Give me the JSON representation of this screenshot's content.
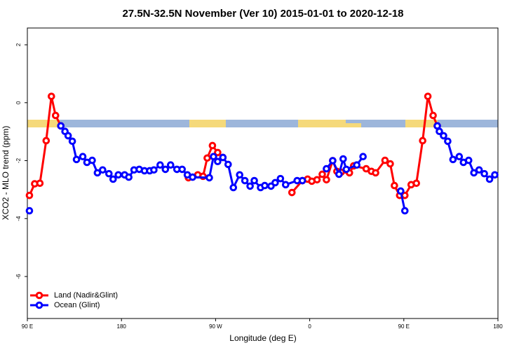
{
  "chart_data": {
    "type": "line",
    "title": "27.5N-32.5N November (Ver 10)   2015-01-01 to 2020-12-18",
    "x_label": "Longitude (deg E)",
    "y_label": "XCO2 - MLO trend (ppm)",
    "xlim": [
      90,
      540
    ],
    "ylim": [
      -7.45,
      2.58
    ],
    "xticks": [
      {
        "value": 90,
        "label": "90 E"
      },
      180,
      {
        "value": 270,
        "label": "90 W"
      },
      {
        "value": 360,
        "label": "0"
      },
      {
        "value": 450,
        "label": "90 E"
      },
      {
        "value": 540,
        "label": "180"
      }
    ],
    "yticks": [
      -6,
      -4,
      -2,
      0,
      2
    ],
    "legend": "bottomleft",
    "series": [
      {
        "name": "Land (Nadir&Glint)",
        "color": "#ff0000",
        "x": [
          92,
          97,
          102,
          108,
          113,
          117,
          122,
          200,
          244,
          253,
          258,
          262,
          267,
          272,
          277,
          350,
          343,
          353,
          358,
          362,
          367,
          372,
          376,
          382,
          386,
          390,
          398,
          402,
          414,
          419,
          423,
          432,
          437,
          441,
          446,
          451,
          457,
          462,
          468,
          473,
          478,
          482
        ],
        "values": [
          -3.2,
          -2.8,
          -2.78,
          -1.31,
          0.22,
          -0.44,
          -0.8,
          null,
          -2.59,
          -2.49,
          -2.54,
          -1.91,
          -1.48,
          -1.72,
          -1.89,
          null,
          -3.1,
          -2.69,
          -2.64,
          -2.71,
          -2.66,
          -2.47,
          -2.66,
          -2.0,
          -2.37,
          -2.4,
          -2.42,
          -2.18,
          -2.28,
          -2.37,
          -2.42,
          -1.99,
          -2.11,
          -2.86,
          -3.2,
          -3.2,
          -2.83,
          -2.78,
          -1.31,
          0.22,
          -0.44,
          -0.8
        ]
      },
      {
        "name": "Ocean (Glint)",
        "color": "#0000ff",
        "x": [
          92,
          100,
          122,
          126,
          129,
          133,
          137,
          143,
          147,
          152,
          157,
          162,
          168,
          172,
          177,
          183,
          187,
          192,
          197,
          202,
          207,
          211,
          217,
          222,
          227,
          233,
          238,
          243,
          248,
          264,
          268,
          272,
          277,
          282,
          287,
          293,
          298,
          303,
          307,
          313,
          317,
          323,
          327,
          332,
          337,
          348,
          353,
          360,
          376,
          382,
          388,
          392,
          395,
          405,
          411,
          420,
          447,
          451,
          460,
          482,
          484,
          488,
          492,
          497,
          503,
          507,
          512,
          517,
          522,
          527,
          532,
          537
        ],
        "values": [
          -3.73,
          null,
          -0.8,
          -0.99,
          -1.14,
          -1.33,
          -1.96,
          -1.86,
          -2.06,
          -1.99,
          -2.42,
          -2.32,
          -2.45,
          -2.64,
          -2.49,
          -2.49,
          -2.57,
          -2.32,
          -2.3,
          -2.35,
          -2.35,
          -2.32,
          -2.15,
          -2.3,
          -2.15,
          -2.3,
          -2.3,
          -2.49,
          -2.57,
          -2.59,
          -1.86,
          -2.03,
          -1.89,
          -2.13,
          -2.93,
          -2.49,
          -2.69,
          -2.88,
          -2.69,
          -2.93,
          -2.86,
          -2.88,
          -2.76,
          -2.62,
          -2.83,
          -2.69,
          -2.69,
          null,
          -2.28,
          -2.0,
          -2.47,
          -1.94,
          -2.3,
          -2.15,
          -1.86,
          null,
          -3.05,
          -3.73,
          null,
          -0.8,
          -0.99,
          -1.14,
          -1.33,
          -1.96,
          -1.86,
          -2.06,
          -1.99,
          -2.42,
          -2.32,
          -2.45,
          -2.64,
          -2.49
        ]
      }
    ]
  }
}
